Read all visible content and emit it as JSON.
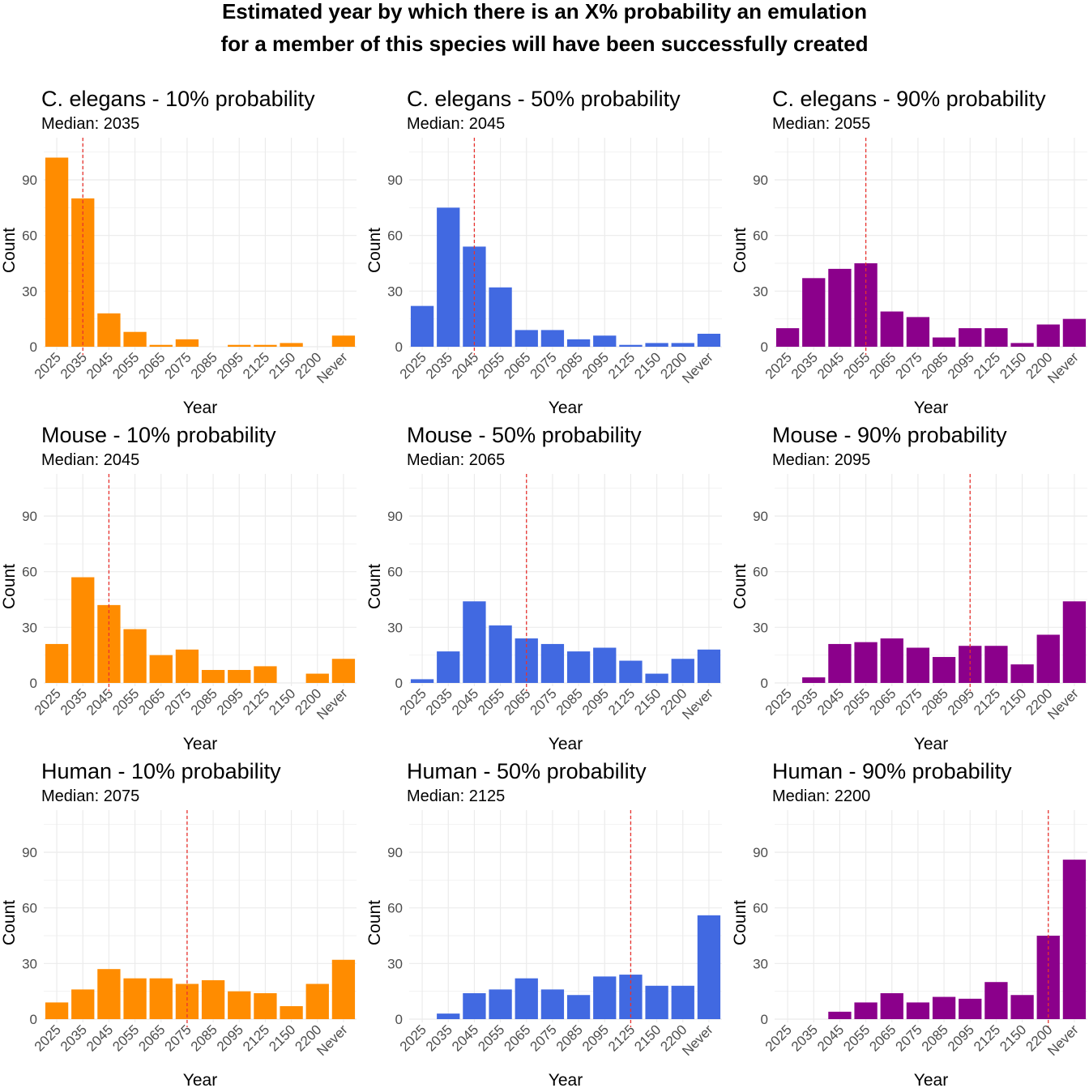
{
  "title_lines": [
    "Estimated year by which there is an X% probability an emulation",
    "for a member of this species will have been successfully created"
  ],
  "chart_data": [
    {
      "type": "bar",
      "title": "C. elegans - 10% probability",
      "subtitle": "Median: 2035",
      "median": "2035",
      "color": "#FF8C00",
      "xlabel": "Year",
      "ylabel": "Count",
      "ylim": [
        0,
        110
      ],
      "yticks": [
        0,
        30,
        60,
        90
      ],
      "categories": [
        "2025",
        "2035",
        "2045",
        "2055",
        "2065",
        "2075",
        "2085",
        "2095",
        "2125",
        "2150",
        "2200",
        "Never"
      ],
      "values": [
        102,
        80,
        18,
        8,
        1,
        4,
        0,
        1,
        1,
        2,
        0,
        6
      ]
    },
    {
      "type": "bar",
      "title": "C. elegans - 50% probability",
      "subtitle": "Median: 2045",
      "median": "2045",
      "color": "#4169E1",
      "xlabel": "Year",
      "ylabel": "Count",
      "ylim": [
        0,
        110
      ],
      "yticks": [
        0,
        30,
        60,
        90
      ],
      "categories": [
        "2025",
        "2035",
        "2045",
        "2055",
        "2065",
        "2075",
        "2085",
        "2095",
        "2125",
        "2150",
        "2200",
        "Never"
      ],
      "values": [
        22,
        75,
        54,
        32,
        9,
        9,
        4,
        6,
        1,
        2,
        2,
        7
      ]
    },
    {
      "type": "bar",
      "title": "C. elegans - 90% probability",
      "subtitle": "Median: 2055",
      "median": "2055",
      "color": "#8B008B",
      "xlabel": "Year",
      "ylabel": "Count",
      "ylim": [
        0,
        110
      ],
      "yticks": [
        0,
        30,
        60,
        90
      ],
      "categories": [
        "2025",
        "2035",
        "2045",
        "2055",
        "2065",
        "2075",
        "2085",
        "2095",
        "2125",
        "2150",
        "2200",
        "Never"
      ],
      "values": [
        10,
        37,
        42,
        45,
        19,
        16,
        5,
        10,
        10,
        2,
        12,
        15
      ]
    },
    {
      "type": "bar",
      "title": "Mouse - 10% probability",
      "subtitle": "Median: 2045",
      "median": "2045",
      "color": "#FF8C00",
      "xlabel": "Year",
      "ylabel": "Count",
      "ylim": [
        0,
        110
      ],
      "yticks": [
        0,
        30,
        60,
        90
      ],
      "categories": [
        "2025",
        "2035",
        "2045",
        "2055",
        "2065",
        "2075",
        "2085",
        "2095",
        "2125",
        "2150",
        "2200",
        "Never"
      ],
      "values": [
        21,
        57,
        42,
        29,
        15,
        18,
        7,
        7,
        9,
        0,
        5,
        13
      ]
    },
    {
      "type": "bar",
      "title": "Mouse - 50% probability",
      "subtitle": "Median: 2065",
      "median": "2065",
      "color": "#4169E1",
      "xlabel": "Year",
      "ylabel": "Count",
      "ylim": [
        0,
        110
      ],
      "yticks": [
        0,
        30,
        60,
        90
      ],
      "categories": [
        "2025",
        "2035",
        "2045",
        "2055",
        "2065",
        "2075",
        "2085",
        "2095",
        "2125",
        "2150",
        "2200",
        "Never"
      ],
      "values": [
        2,
        17,
        44,
        31,
        24,
        21,
        17,
        19,
        12,
        5,
        13,
        18
      ]
    },
    {
      "type": "bar",
      "title": "Mouse - 90% probability",
      "subtitle": "Median: 2095",
      "median": "2095",
      "color": "#8B008B",
      "xlabel": "Year",
      "ylabel": "Count",
      "ylim": [
        0,
        110
      ],
      "yticks": [
        0,
        30,
        60,
        90
      ],
      "categories": [
        "2025",
        "2035",
        "2045",
        "2055",
        "2065",
        "2075",
        "2085",
        "2095",
        "2125",
        "2150",
        "2200",
        "Never"
      ],
      "values": [
        0,
        3,
        21,
        22,
        24,
        19,
        14,
        20,
        20,
        10,
        26,
        44
      ]
    },
    {
      "type": "bar",
      "title": "Human - 10% probability",
      "subtitle": "Median: 2075",
      "median": "2075",
      "color": "#FF8C00",
      "xlabel": "Year",
      "ylabel": "Count",
      "ylim": [
        0,
        110
      ],
      "yticks": [
        0,
        30,
        60,
        90
      ],
      "categories": [
        "2025",
        "2035",
        "2045",
        "2055",
        "2065",
        "2075",
        "2085",
        "2095",
        "2125",
        "2150",
        "2200",
        "Never"
      ],
      "values": [
        9,
        16,
        27,
        22,
        22,
        19,
        21,
        15,
        14,
        7,
        19,
        32
      ]
    },
    {
      "type": "bar",
      "title": "Human - 50% probability",
      "subtitle": "Median: 2125",
      "median": "2125",
      "color": "#4169E1",
      "xlabel": "Year",
      "ylabel": "Count",
      "ylim": [
        0,
        110
      ],
      "yticks": [
        0,
        30,
        60,
        90
      ],
      "categories": [
        "2025",
        "2035",
        "2045",
        "2055",
        "2065",
        "2075",
        "2085",
        "2095",
        "2125",
        "2150",
        "2200",
        "Never"
      ],
      "values": [
        0,
        3,
        14,
        16,
        22,
        16,
        13,
        23,
        24,
        18,
        18,
        56
      ]
    },
    {
      "type": "bar",
      "title": "Human - 90% probability",
      "subtitle": "Median: 2200",
      "median": "2200",
      "color": "#8B008B",
      "xlabel": "Year",
      "ylabel": "Count",
      "ylim": [
        0,
        110
      ],
      "yticks": [
        0,
        30,
        60,
        90
      ],
      "categories": [
        "2025",
        "2035",
        "2045",
        "2055",
        "2065",
        "2075",
        "2085",
        "2095",
        "2125",
        "2150",
        "2200",
        "Never"
      ],
      "values": [
        0,
        0,
        4,
        9,
        14,
        9,
        12,
        11,
        20,
        13,
        45,
        86
      ]
    }
  ]
}
